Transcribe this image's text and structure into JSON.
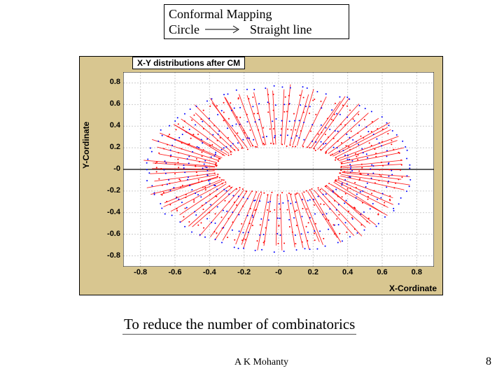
{
  "header": {
    "line1": "Conformal Mapping",
    "left_word": "Circle",
    "right_word": "Straight line"
  },
  "chart": {
    "title": "X-Y distributions after CM",
    "xlabel": "X-Cordinate",
    "ylabel": "Y-Cordinate",
    "type": "scatter",
    "background_outer": "#d8c690",
    "background_inner": "#ffffff",
    "grid_color": "#cccccc",
    "axis_color": "#000000",
    "series_colors": {
      "primary": "#ff0000",
      "secondary": "#0000ff"
    },
    "xlim": [
      -0.9,
      0.9
    ],
    "ylim": [
      -0.9,
      0.9
    ],
    "xticks": [
      -0.8,
      -0.6,
      -0.4,
      -0.2,
      0.0,
      0.2,
      0.4,
      0.6,
      0.8
    ],
    "xtick_labels": [
      "-0.8",
      "-0.6",
      "-0.4",
      "-0.2",
      "-0",
      "0.2",
      "0.4",
      "0.6",
      "0.8"
    ],
    "yticks": [
      -0.8,
      -0.6,
      -0.4,
      -0.2,
      0.0,
      0.2,
      0.4,
      0.6,
      0.8
    ],
    "ytick_labels": [
      "-0.8",
      "-0.6",
      "-0.4",
      "-0.2",
      "-0",
      "0.2",
      "0.4",
      "0.6",
      "0.8"
    ],
    "tick_fontsize": 11,
    "label_fontsize": 12,
    "title_fontsize": 12,
    "ring_pattern": {
      "n_spokes": 90,
      "inner_radius_x": 0.37,
      "inner_radius_y": 0.23,
      "outer_radius_x": 0.76,
      "outer_radius_y": 0.76,
      "points_per_spoke": 8,
      "jitter": 0.03
    }
  },
  "caption": "To reduce the number of combinatorics",
  "author": "A K Mohanty",
  "page": "8"
}
